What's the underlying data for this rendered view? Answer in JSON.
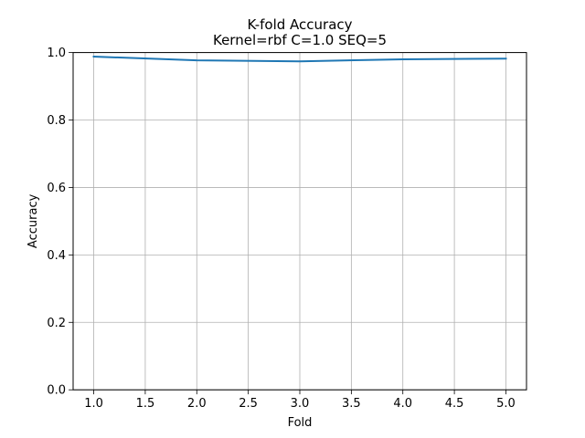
{
  "chart_data": {
    "type": "line",
    "title": "K-fold Accuracy",
    "subtitle": "Kernel=rbf C=1.0 SEQ=5",
    "xlabel": "Fold",
    "ylabel": "Accuracy",
    "xlim": [
      0.8,
      5.2
    ],
    "ylim": [
      0.0,
      1.0
    ],
    "grid": true,
    "x_ticks": [
      1.0,
      1.5,
      2.0,
      2.5,
      3.0,
      3.5,
      4.0,
      4.5,
      5.0
    ],
    "x_tick_labels": [
      "1.0",
      "1.5",
      "2.0",
      "2.5",
      "3.0",
      "3.5",
      "4.0",
      "4.5",
      "5.0"
    ],
    "y_ticks": [
      0.0,
      0.2,
      0.4,
      0.6,
      0.8,
      1.0
    ],
    "y_tick_labels": [
      "0.0",
      "0.2",
      "0.4",
      "0.6",
      "0.8",
      "1.0"
    ],
    "series": [
      {
        "color": "#1f77b4",
        "x": [
          1,
          2,
          3,
          4,
          5
        ],
        "y": [
          0.988,
          0.977,
          0.974,
          0.98,
          0.982
        ]
      }
    ],
    "colors": {
      "line": "#1f77b4",
      "grid": "#b0b0b0",
      "axes": "#000000"
    }
  }
}
